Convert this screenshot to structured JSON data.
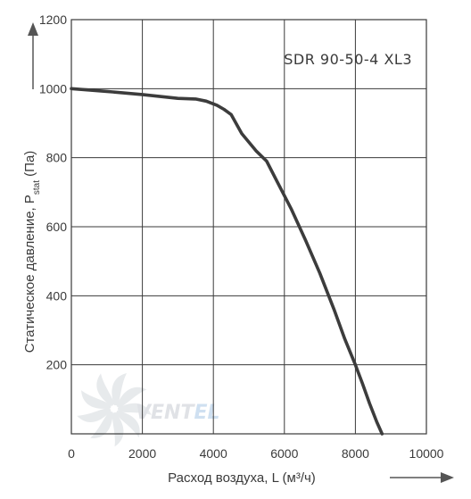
{
  "chart_data": {
    "type": "line",
    "title": "SDR 90-50-4 XL3",
    "xlabel": "Расход воздуха, L (м³/ч)",
    "ylabel": "Статическое давление, P",
    "ylabel_sub": "stat",
    "ylabel_unit": " (Па)",
    "xlim": [
      0,
      10000
    ],
    "ylim": [
      0,
      1200
    ],
    "x_ticks": [
      "0",
      "2000",
      "4000",
      "6000",
      "8000",
      "10000"
    ],
    "y_ticks": [
      "200",
      "400",
      "600",
      "800",
      "1000",
      "1200"
    ],
    "grid": true,
    "series": [
      {
        "color": "#3c3c3c",
        "x": [
          0,
          1000,
          2000,
          3000,
          3500,
          3800,
          4100,
          4300,
          4500,
          4800,
          5200,
          5500,
          5800,
          6200,
          6600,
          7000,
          7400,
          7700,
          8000,
          8200,
          8400,
          8600,
          8750
        ],
        "y": [
          1000,
          992,
          983,
          972,
          970,
          964,
          952,
          940,
          925,
          870,
          820,
          790,
          730,
          650,
          560,
          465,
          360,
          275,
          200,
          145,
          88,
          35,
          0
        ]
      }
    ]
  },
  "watermark": {
    "brand_a": "VENT",
    "brand_b": "EL",
    "color_a": "#c7ccd3",
    "color_b": "#a9c8e6"
  }
}
